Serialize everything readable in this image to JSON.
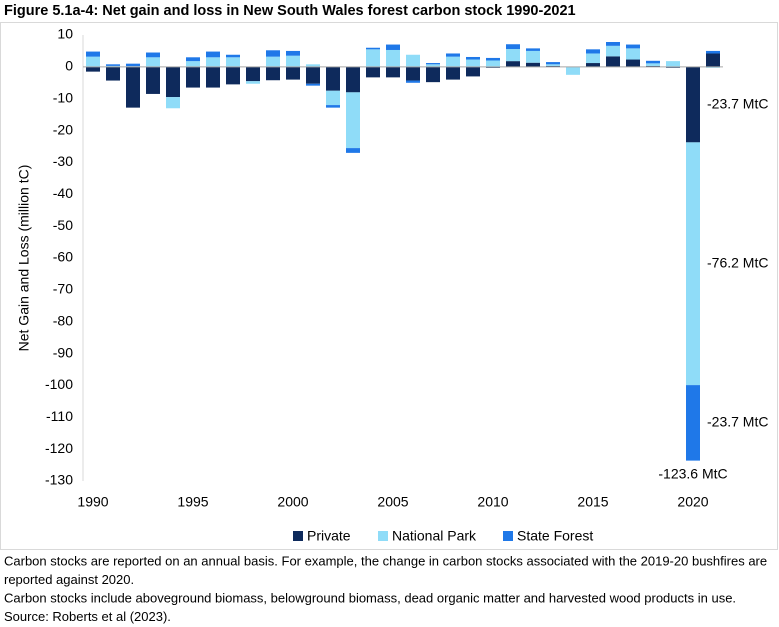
{
  "chart_data": {
    "type": "bar",
    "stacked": true,
    "title": "Figure 5.1a-4: Net gain and loss in New South Wales forest carbon stock 1990-2021",
    "ylabel": "Net Gain and Loss (million tC)",
    "x": [
      1990,
      1991,
      1992,
      1993,
      1994,
      1995,
      1996,
      1997,
      1998,
      1999,
      2000,
      2001,
      2002,
      2003,
      2004,
      2005,
      2006,
      2007,
      2008,
      2009,
      2010,
      2011,
      2012,
      2013,
      2014,
      2015,
      2016,
      2017,
      2018,
      2019,
      2020,
      2021
    ],
    "xlim": [
      1989.5,
      2021.5
    ],
    "xticks": [
      1990,
      1995,
      2000,
      2005,
      2010,
      2015,
      2020
    ],
    "ylim": [
      -130,
      10
    ],
    "yticks": [
      -130,
      -120,
      -110,
      -100,
      -90,
      -80,
      -70,
      -60,
      -50,
      -40,
      -30,
      -20,
      -10,
      0,
      10
    ],
    "series": [
      {
        "name": "Private",
        "color": "#0e2a5c",
        "values": [
          -1.5,
          -4.3,
          -12.8,
          -8.5,
          -9.5,
          -6.5,
          -6.5,
          -5.5,
          -4.5,
          -4.2,
          -4,
          -5.3,
          -7.5,
          -8,
          -3.3,
          -3.3,
          -4.3,
          -4.8,
          -4,
          -3,
          -0.3,
          1.8,
          1.3,
          0.3,
          0,
          1.2,
          3.3,
          2.3,
          0.3,
          -0.3,
          -23.7,
          4.2
        ]
      },
      {
        "name": "National Park",
        "color": "#8fdcf8",
        "values": [
          3.2,
          0.3,
          0.2,
          3,
          -3.5,
          1.8,
          3,
          3,
          -0.8,
          3.2,
          3.5,
          0.8,
          -4.5,
          -17.5,
          5.5,
          5.3,
          3.8,
          0.8,
          3.2,
          2.3,
          2,
          3.8,
          3.7,
          0.5,
          -2.5,
          3,
          3.3,
          3.5,
          0.8,
          1.8,
          -76.2,
          -0.3
        ]
      },
      {
        "name": "State Forest",
        "color": "#1f78e8",
        "values": [
          1.6,
          0.5,
          0.8,
          1.5,
          0,
          1.2,
          1.8,
          0.8,
          0,
          2,
          1.5,
          -0.6,
          -0.8,
          -1.5,
          0.5,
          1.7,
          -0.7,
          0.4,
          1,
          0.8,
          0.8,
          1.5,
          0.8,
          0.7,
          0,
          1.3,
          1.2,
          1.2,
          0.8,
          0,
          -23.7,
          0.8
        ]
      }
    ],
    "annotations": [
      "-23.7 MtC",
      "-76.2 MtC",
      "-23.7 MtC",
      "-123.6 MtC"
    ],
    "notes": [
      "Carbon stocks are reported on an annual basis. For example, the change in carbon stocks associated with the 2019-20 bushfires are",
      "reported against 2020.",
      "Carbon stocks include aboveground biomass, belowground biomass, dead organic matter and harvested wood products in use.",
      "Source: Roberts et al (2023)."
    ]
  }
}
